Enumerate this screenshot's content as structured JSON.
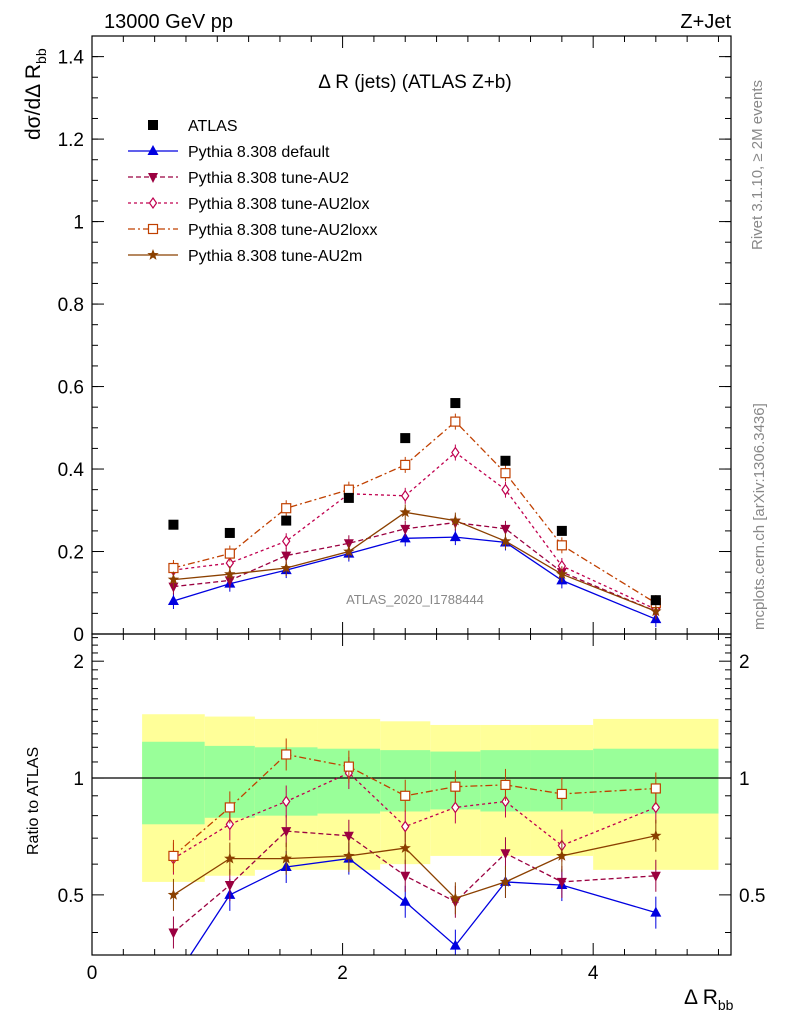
{
  "header": {
    "left": "13000 GeV pp",
    "right": "Z+Jet"
  },
  "side_labels": {
    "rivet": "Rivet 3.1.10, ≥ 2M events",
    "mcplots": "mcplots.cern.ch [arXiv:1306.3436]"
  },
  "chart_data": {
    "type": "scatter",
    "title": "Δ R (jets) (ATLAS Z+b)",
    "watermark": "ATLAS_2020_I1788444",
    "xlabel": "Δ R",
    "xlabel_sub": "bb",
    "ylabel": "dσ/dΔ R",
    "ylabel_sub": "bb",
    "ratio_ylabel": "Ratio to ATLAS",
    "xlim": [
      0,
      5.1
    ],
    "ylim": [
      0,
      1.45
    ],
    "ratio_ylim": [
      0.35,
      2.35
    ],
    "x_ticks": [
      "0",
      "2",
      "4"
    ],
    "y_ticks": [
      "0",
      "0.2",
      "0.4",
      "0.6",
      "0.8",
      "1",
      "1.2",
      "1.4"
    ],
    "ratio_ticks": [
      "0.5",
      "1",
      "2"
    ],
    "legend_position": "top-left",
    "x": [
      0.65,
      1.1,
      1.55,
      2.05,
      2.5,
      2.9,
      3.3,
      3.75,
      4.5
    ],
    "bin_edges": [
      0.4,
      0.9,
      1.3,
      1.8,
      2.3,
      2.7,
      3.1,
      3.5,
      4.0,
      5.0
    ],
    "band_green": [
      0.24,
      0.21,
      0.2,
      0.19,
      0.18,
      0.17,
      0.18,
      0.18,
      0.19
    ],
    "band_yellow": [
      0.46,
      0.44,
      0.42,
      0.42,
      0.4,
      0.37,
      0.37,
      0.37,
      0.42
    ],
    "series": [
      {
        "name": "ATLAS",
        "color": "#000000",
        "marker": "square",
        "dash": "none",
        "line": false,
        "values": [
          0.265,
          0.245,
          0.275,
          0.33,
          0.475,
          0.56,
          0.42,
          0.25,
          0.082
        ],
        "ratio": [
          1,
          1,
          1,
          1,
          1,
          1,
          1,
          1,
          1
        ]
      },
      {
        "name": "Pythia 8.308 default",
        "color": "#0000e0",
        "marker": "triangle-up",
        "dash": "none",
        "line": true,
        "values": [
          0.08,
          0.122,
          0.155,
          0.195,
          0.232,
          0.235,
          0.222,
          0.13,
          0.036
        ],
        "ratio": [
          0.3,
          0.5,
          0.59,
          0.62,
          0.48,
          0.37,
          0.54,
          0.53,
          0.45
        ]
      },
      {
        "name": "Pythia 8.308 tune-AU2",
        "color": "#9b0040",
        "marker": "triangle-down",
        "dash": "5,3",
        "line": true,
        "values": [
          0.115,
          0.13,
          0.19,
          0.22,
          0.255,
          0.27,
          0.255,
          0.15,
          0.055
        ],
        "ratio": [
          0.4,
          0.53,
          0.73,
          0.71,
          0.56,
          0.48,
          0.64,
          0.54,
          0.56
        ]
      },
      {
        "name": "Pythia 8.308 tune-AU2lox",
        "color": "#c0004f",
        "marker": "diamond-open",
        "dash": "3,3",
        "line": true,
        "values": [
          0.155,
          0.172,
          0.225,
          0.34,
          0.335,
          0.44,
          0.35,
          0.165,
          0.06
        ],
        "ratio": [
          0.62,
          0.76,
          0.87,
          1.03,
          0.75,
          0.84,
          0.87,
          0.67,
          0.84
        ]
      },
      {
        "name": "Pythia 8.308 tune-AU2loxx",
        "color": "#c04000",
        "marker": "square-open",
        "dash": "7,3,2,3",
        "line": true,
        "values": [
          0.16,
          0.195,
          0.305,
          0.35,
          0.41,
          0.515,
          0.39,
          0.215,
          0.075
        ],
        "ratio": [
          0.63,
          0.84,
          1.15,
          1.07,
          0.9,
          0.95,
          0.96,
          0.91,
          0.94
        ]
      },
      {
        "name": "Pythia 8.308 tune-AU2m",
        "color": "#8b4000",
        "marker": "star",
        "dash": "none",
        "line": true,
        "values": [
          0.132,
          0.145,
          0.16,
          0.2,
          0.295,
          0.275,
          0.225,
          0.145,
          0.055
        ],
        "ratio": [
          0.5,
          0.62,
          0.62,
          0.63,
          0.66,
          0.49,
          0.54,
          0.63,
          0.71
        ]
      }
    ]
  }
}
